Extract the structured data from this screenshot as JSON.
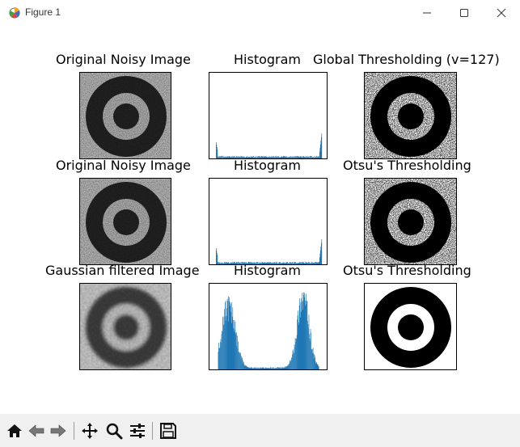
{
  "window": {
    "title": "Figure 1"
  },
  "icons": {
    "app": "matplotlib-icon",
    "minimize": "minimize-icon",
    "maximize": "maximize-icon",
    "close": "close-icon"
  },
  "figure": {
    "rows": [
      {
        "original_title": "Original Noisy Image",
        "histogram_title": "Histogram",
        "threshold_title": "Global Thresholding (v=127)"
      },
      {
        "original_title": "Original Noisy Image",
        "histogram_title": "Histogram",
        "threshold_title": "Otsu's Thresholding"
      },
      {
        "original_title": "Gaussian filtered Image",
        "histogram_title": "Histogram",
        "threshold_title": "Otsu's Thresholding"
      }
    ],
    "histogram_color": "#1f77b4"
  },
  "toolbar": {
    "tools": [
      "home-icon",
      "back-icon",
      "forward-icon",
      "pan-icon",
      "zoom-icon",
      "configure-subplots-icon",
      "save-icon"
    ]
  }
}
